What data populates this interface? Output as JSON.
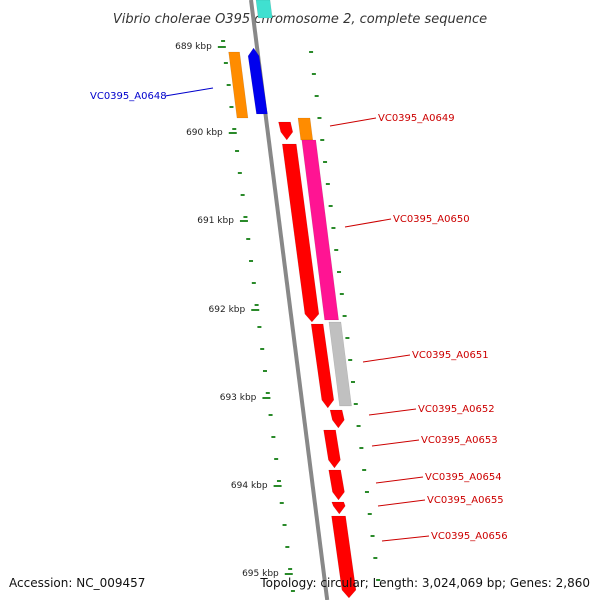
{
  "title": "Vibrio cholerae O395 chromosome 2, complete sequence",
  "accession": "Accession: NC_009457",
  "summary": "Topology: circular; Length: 3,024,069 bp; Genes: 2,860",
  "colors": {
    "backbone": "#888888",
    "tick": "#2a8a2a",
    "label_red": "#cc0000",
    "label_blue": "#0000cc",
    "gene_red": "#ff0000",
    "gene_blue": "#0000ee",
    "gene_orange": "#ff8c00",
    "gene_pink": "#ff1493",
    "gene_gray": "#c0c0c0",
    "gene_cyan": "#40e0d0"
  },
  "scale_labels": [
    "689 kbp",
    "690 kbp",
    "691 kbp",
    "692 kbp",
    "693 kbp",
    "694 kbp",
    "695 kbp"
  ],
  "genes": [
    {
      "name": "VC0395_A0648",
      "color": "blue"
    },
    {
      "name": "VC0395_A0649",
      "color": "red"
    },
    {
      "name": "VC0395_A0650",
      "color": "red"
    },
    {
      "name": "VC0395_A0651",
      "color": "red"
    },
    {
      "name": "VC0395_A0652",
      "color": "red"
    },
    {
      "name": "VC0395_A0653",
      "color": "red"
    },
    {
      "name": "VC0395_A0654",
      "color": "red"
    },
    {
      "name": "VC0395_A0655",
      "color": "red"
    },
    {
      "name": "VC0395_A0656",
      "color": "red"
    }
  ]
}
